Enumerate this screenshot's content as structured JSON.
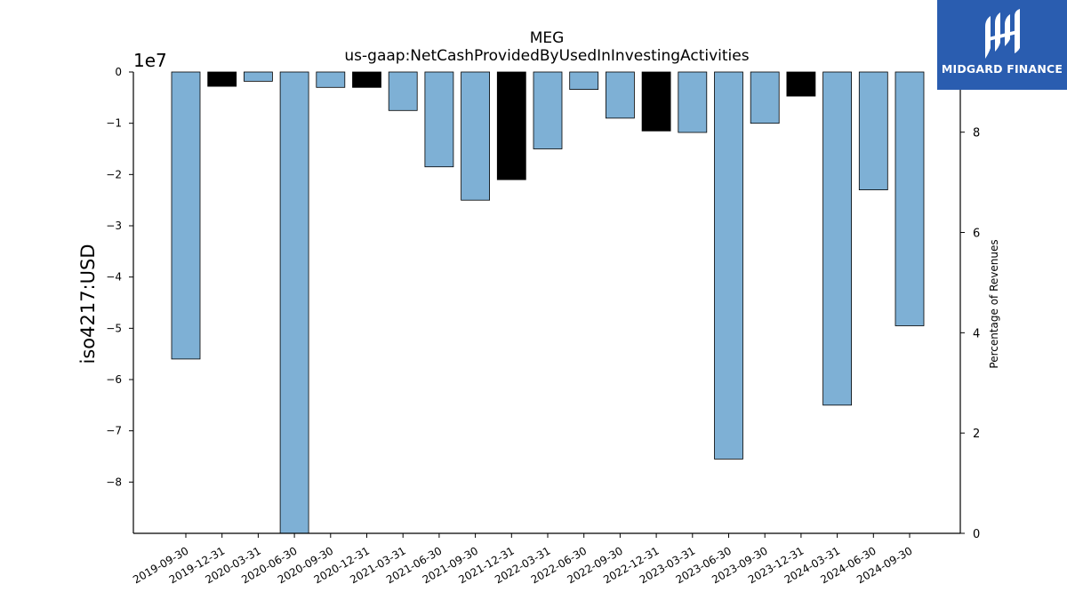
{
  "chart_data": {
    "type": "bar",
    "title": "MEG",
    "subtitle": "us-gaap:NetCashProvidedByUsedInInvestingActivities",
    "ylabel": "iso4217:USD",
    "ylabel_right": "Percentage of Revenues",
    "y_multiplier_label": "1e7",
    "ylim": [
      -90000000,
      0
    ],
    "y_ticks": [
      0,
      -1,
      -2,
      -3,
      -4,
      -5,
      -6,
      -7,
      -8
    ],
    "ylim_right": [
      0,
      9.2
    ],
    "y_right_ticks": [
      0,
      2,
      4,
      6,
      8
    ],
    "grid": false,
    "categories": [
      "2019-09-30",
      "2019-12-31",
      "2020-03-31",
      "2020-06-30",
      "2020-09-30",
      "2020-12-31",
      "2021-03-31",
      "2021-06-30",
      "2021-09-30",
      "2021-12-31",
      "2022-03-31",
      "2022-06-30",
      "2022-09-30",
      "2022-12-31",
      "2023-03-31",
      "2023-06-30",
      "2023-09-30",
      "2023-12-31",
      "2024-03-31",
      "2024-06-30",
      "2024-09-30"
    ],
    "values": [
      -56000000,
      -2800000,
      -1800000,
      -90000000,
      -3000000,
      -3000000,
      -7500000,
      -18500000,
      -25000000,
      -21000000,
      -15000000,
      -3400000,
      -9000000,
      -11500000,
      -11800000,
      -75500000,
      -10000000,
      -4700000,
      -65000000,
      -23000000,
      -49500000
    ],
    "bar_colors": [
      "#7eb0d5",
      "#000000",
      "#7eb0d5",
      "#7eb0d5",
      "#7eb0d5",
      "#000000",
      "#7eb0d5",
      "#7eb0d5",
      "#7eb0d5",
      "#000000",
      "#7eb0d5",
      "#7eb0d5",
      "#7eb0d5",
      "#000000",
      "#7eb0d5",
      "#7eb0d5",
      "#7eb0d5",
      "#000000",
      "#7eb0d5",
      "#7eb0d5",
      "#7eb0d5"
    ]
  },
  "logo": {
    "text": "MIDGARD FINANCE",
    "icon": "midgard-logo-icon",
    "background": "#2a5db0"
  }
}
